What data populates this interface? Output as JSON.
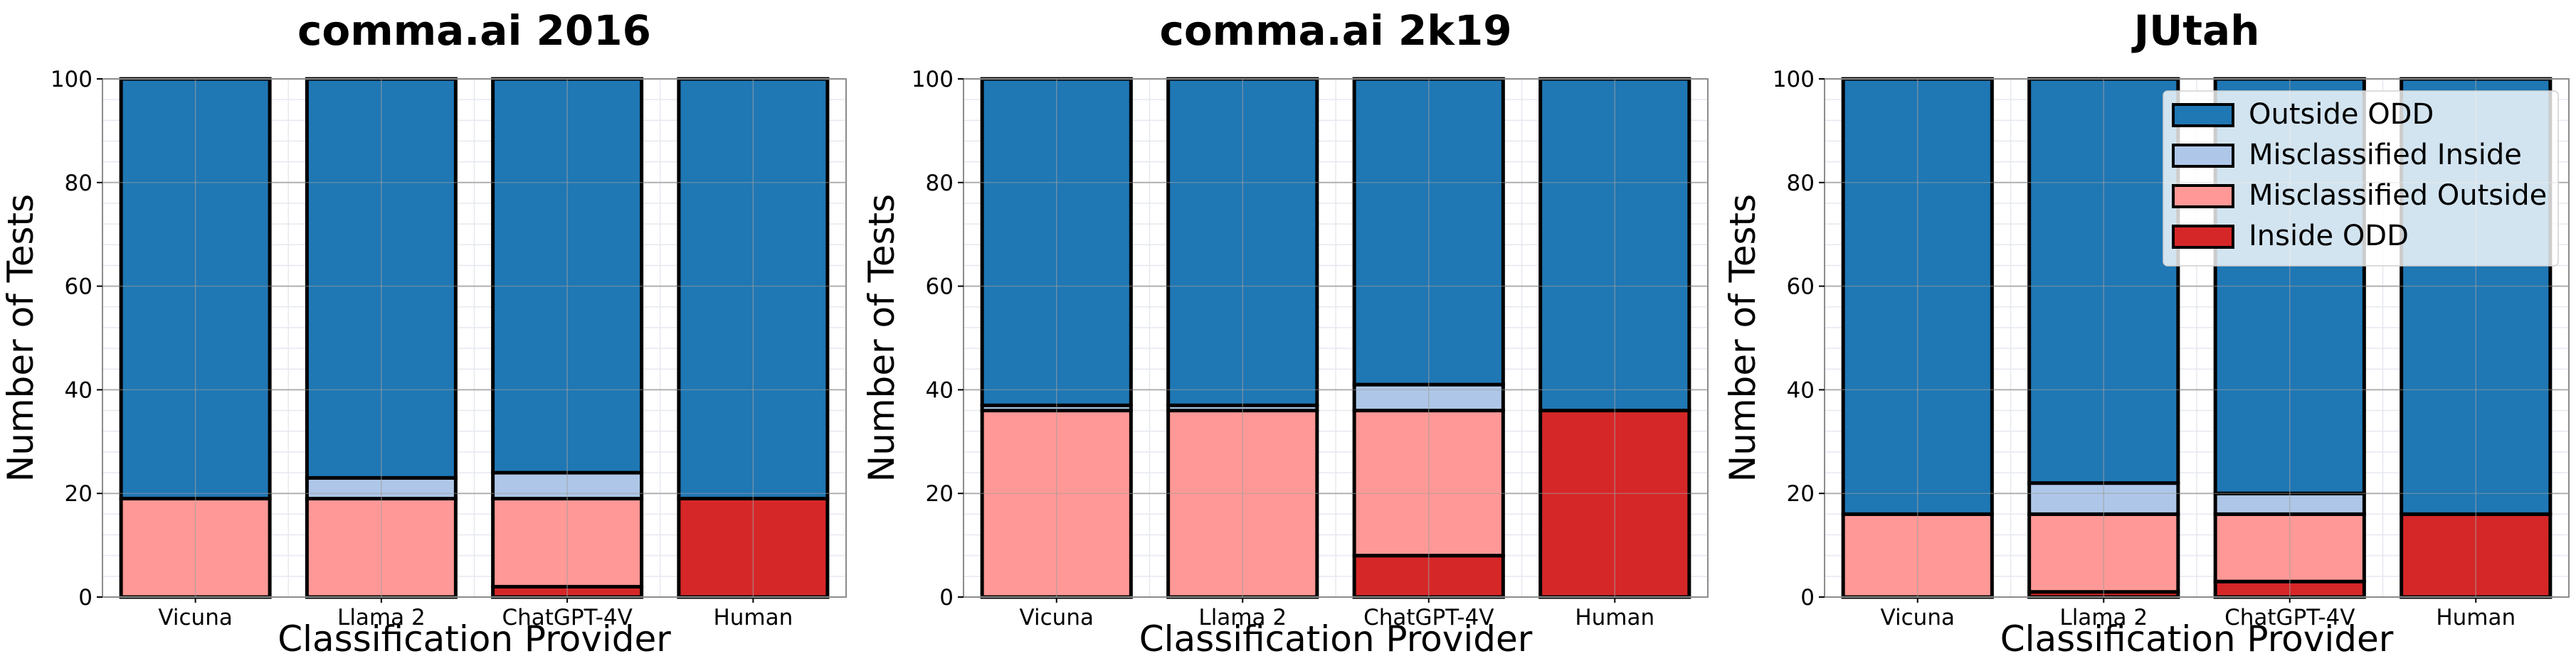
{
  "chart_data": [
    {
      "type": "bar",
      "stacked": true,
      "title": "comma.ai 2016",
      "xlabel": "Classification Provider",
      "ylabel": "Number of Tests",
      "ylim": [
        0,
        100
      ],
      "yticks": [
        "0",
        "20",
        "40",
        "60",
        "80",
        "100"
      ],
      "grid": true,
      "categories": [
        "Vicuna",
        "Llama 2",
        "ChatGPT-4V",
        "Human"
      ],
      "series": [
        {
          "name": "Inside ODD",
          "color": "#d62728",
          "values": [
            0,
            0,
            2,
            19
          ]
        },
        {
          "name": "Misclassified Outside",
          "color": "#ff9896",
          "values": [
            19,
            19,
            17,
            0
          ]
        },
        {
          "name": "Misclassified Inside",
          "color": "#aec7e8",
          "values": [
            0,
            4,
            5,
            0
          ]
        },
        {
          "name": "Outside ODD",
          "color": "#1f77b4",
          "values": [
            81,
            77,
            76,
            81
          ]
        }
      ]
    },
    {
      "type": "bar",
      "stacked": true,
      "title": "comma.ai 2k19",
      "xlabel": "Classification Provider",
      "ylabel": "Number of Tests",
      "ylim": [
        0,
        100
      ],
      "yticks": [
        "0",
        "20",
        "40",
        "60",
        "80",
        "100"
      ],
      "grid": true,
      "categories": [
        "Vicuna",
        "Llama 2",
        "ChatGPT-4V",
        "Human"
      ],
      "series": [
        {
          "name": "Inside ODD",
          "color": "#d62728",
          "values": [
            0,
            0,
            8,
            36
          ]
        },
        {
          "name": "Misclassified Outside",
          "color": "#ff9896",
          "values": [
            36,
            36,
            28,
            0
          ]
        },
        {
          "name": "Misclassified Inside",
          "color": "#aec7e8",
          "values": [
            1,
            1,
            5,
            0
          ]
        },
        {
          "name": "Outside ODD",
          "color": "#1f77b4",
          "values": [
            63,
            63,
            59,
            64
          ]
        }
      ]
    },
    {
      "type": "bar",
      "stacked": true,
      "title": "JUtah",
      "xlabel": "Classification Provider",
      "ylabel": "Number of Tests",
      "ylim": [
        0,
        100
      ],
      "yticks": [
        "0",
        "20",
        "40",
        "60",
        "80",
        "100"
      ],
      "grid": true,
      "legend_position": "top-right",
      "categories": [
        "Vicuna",
        "Llama 2",
        "ChatGPT-4V",
        "Human"
      ],
      "series": [
        {
          "name": "Inside ODD",
          "color": "#d62728",
          "values": [
            0,
            1,
            3,
            16
          ]
        },
        {
          "name": "Misclassified Outside",
          "color": "#ff9896",
          "values": [
            16,
            15,
            13,
            0
          ]
        },
        {
          "name": "Misclassified Inside",
          "color": "#aec7e8",
          "values": [
            0,
            6,
            4,
            0
          ]
        },
        {
          "name": "Outside ODD",
          "color": "#1f77b4",
          "values": [
            84,
            78,
            80,
            84
          ]
        }
      ]
    }
  ],
  "legend": {
    "items": [
      {
        "label": "Outside ODD",
        "color": "#1f77b4"
      },
      {
        "label": "Misclassified Inside",
        "color": "#aec7e8"
      },
      {
        "label": "Misclassified Outside",
        "color": "#ff9896"
      },
      {
        "label": "Inside ODD",
        "color": "#d62728"
      }
    ]
  }
}
